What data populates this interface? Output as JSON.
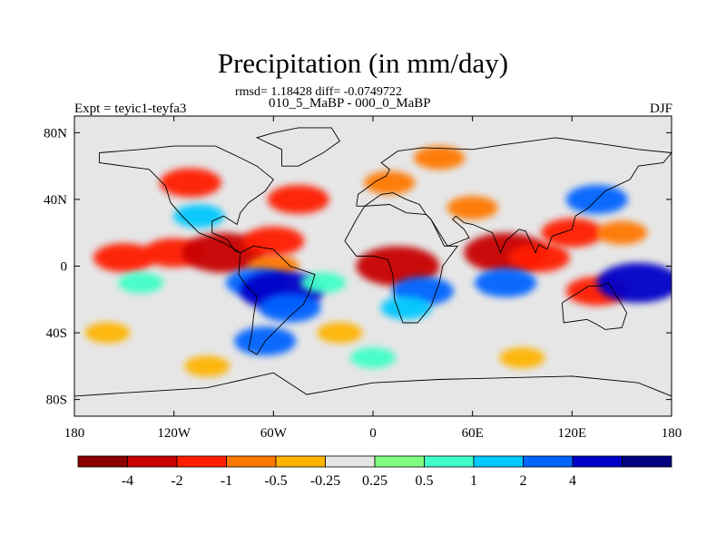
{
  "figure": {
    "title": "Precipitation (in mm/day)",
    "stats_text": "rmsd= 1.18428 diff= -0.0749722",
    "case_text": "010_5_MaBP - 000_0_MaBP",
    "left_label": "Expt = teyic1-teyfa3",
    "right_label": "DJF"
  },
  "map": {
    "projection": "cylindrical-equidistant",
    "lon_range": [
      -180,
      180
    ],
    "lat_range": [
      -90,
      90
    ],
    "lon_ticks": [
      {
        "value": -180,
        "label": "180"
      },
      {
        "value": -120,
        "label": "120W"
      },
      {
        "value": -60,
        "label": "60W"
      },
      {
        "value": 0,
        "label": "0"
      },
      {
        "value": 60,
        "label": "60E"
      },
      {
        "value": 120,
        "label": "120E"
      },
      {
        "value": 180,
        "label": "180"
      }
    ],
    "lat_ticks": [
      {
        "value": 80,
        "label": "80N"
      },
      {
        "value": 40,
        "label": "40N"
      },
      {
        "value": 0,
        "label": "0"
      },
      {
        "value": -40,
        "label": "40S"
      },
      {
        "value": -80,
        "label": "80S"
      }
    ],
    "background_color": "#e6e6e6",
    "coastline_color": "#000000"
  },
  "colorbar": {
    "colors": [
      "#8b0000",
      "#c80000",
      "#ff1e00",
      "#ff7800",
      "#ffb400",
      "#e6e6e6",
      "#80ff80",
      "#40ffc8",
      "#00c8ff",
      "#0064ff",
      "#0000c8",
      "#000080"
    ],
    "labels": [
      "-4",
      "-2",
      "-1",
      "-0.5",
      "-0.25",
      "0.25",
      "0.5",
      "1",
      "2",
      "4"
    ]
  },
  "anomalies": [
    {
      "lon": -150,
      "lat": 5,
      "value": -2
    },
    {
      "lon": -120,
      "lat": 8,
      "value": -2
    },
    {
      "lon": -90,
      "lat": 8,
      "value": -4
    },
    {
      "lon": -60,
      "lat": 0,
      "value": -1
    },
    {
      "lon": -60,
      "lat": 15,
      "value": -2
    },
    {
      "lon": -70,
      "lat": -10,
      "value": 2
    },
    {
      "lon": -55,
      "lat": -15,
      "value": 4
    },
    {
      "lon": -50,
      "lat": -25,
      "value": 2
    },
    {
      "lon": -65,
      "lat": -45,
      "value": 2
    },
    {
      "lon": -45,
      "lat": 40,
      "value": -2
    },
    {
      "lon": -110,
      "lat": 50,
      "value": -2
    },
    {
      "lon": -105,
      "lat": 30,
      "value": 1
    },
    {
      "lon": -140,
      "lat": -10,
      "value": 0.5
    },
    {
      "lon": -30,
      "lat": -10,
      "value": 0.5
    },
    {
      "lon": -20,
      "lat": -40,
      "value": -0.5
    },
    {
      "lon": -160,
      "lat": -40,
      "value": -0.5
    },
    {
      "lon": 15,
      "lat": 0,
      "value": -4
    },
    {
      "lon": 30,
      "lat": -15,
      "value": 2
    },
    {
      "lon": 20,
      "lat": -25,
      "value": 1
    },
    {
      "lon": 40,
      "lat": 65,
      "value": -1
    },
    {
      "lon": 10,
      "lat": 50,
      "value": -1
    },
    {
      "lon": 80,
      "lat": 8,
      "value": -4
    },
    {
      "lon": 100,
      "lat": 5,
      "value": -2
    },
    {
      "lon": 80,
      "lat": -10,
      "value": 2
    },
    {
      "lon": 120,
      "lat": 20,
      "value": -2
    },
    {
      "lon": 135,
      "lat": 40,
      "value": 2
    },
    {
      "lon": 150,
      "lat": 20,
      "value": -1
    },
    {
      "lon": 135,
      "lat": -15,
      "value": -2
    },
    {
      "lon": 160,
      "lat": -10,
      "value": 4
    },
    {
      "lon": 60,
      "lat": 35,
      "value": -1
    },
    {
      "lon": 0,
      "lat": -55,
      "value": 0.5
    },
    {
      "lon": 90,
      "lat": -55,
      "value": -0.5
    },
    {
      "lon": -100,
      "lat": -60,
      "value": -0.5
    }
  ]
}
